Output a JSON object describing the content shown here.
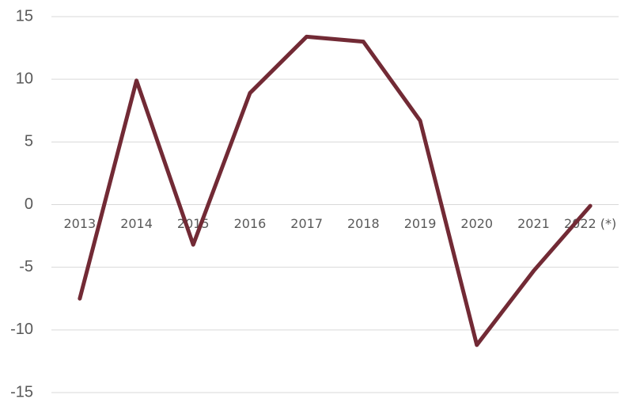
{
  "chart_data": {
    "type": "line",
    "categories": [
      "2013",
      "2014",
      "2015",
      "2016",
      "2017",
      "2018",
      "2019",
      "2020",
      "2021",
      "2022 (*)"
    ],
    "values": [
      -7.5,
      9.9,
      -3.2,
      8.9,
      13.4,
      13.0,
      6.7,
      -11.2,
      -5.3,
      -0.1
    ],
    "color": "#722a35",
    "ylim": [
      -15,
      15
    ],
    "yticks": [
      -15,
      -10,
      -5,
      0,
      5,
      10,
      15
    ],
    "grid": true
  }
}
